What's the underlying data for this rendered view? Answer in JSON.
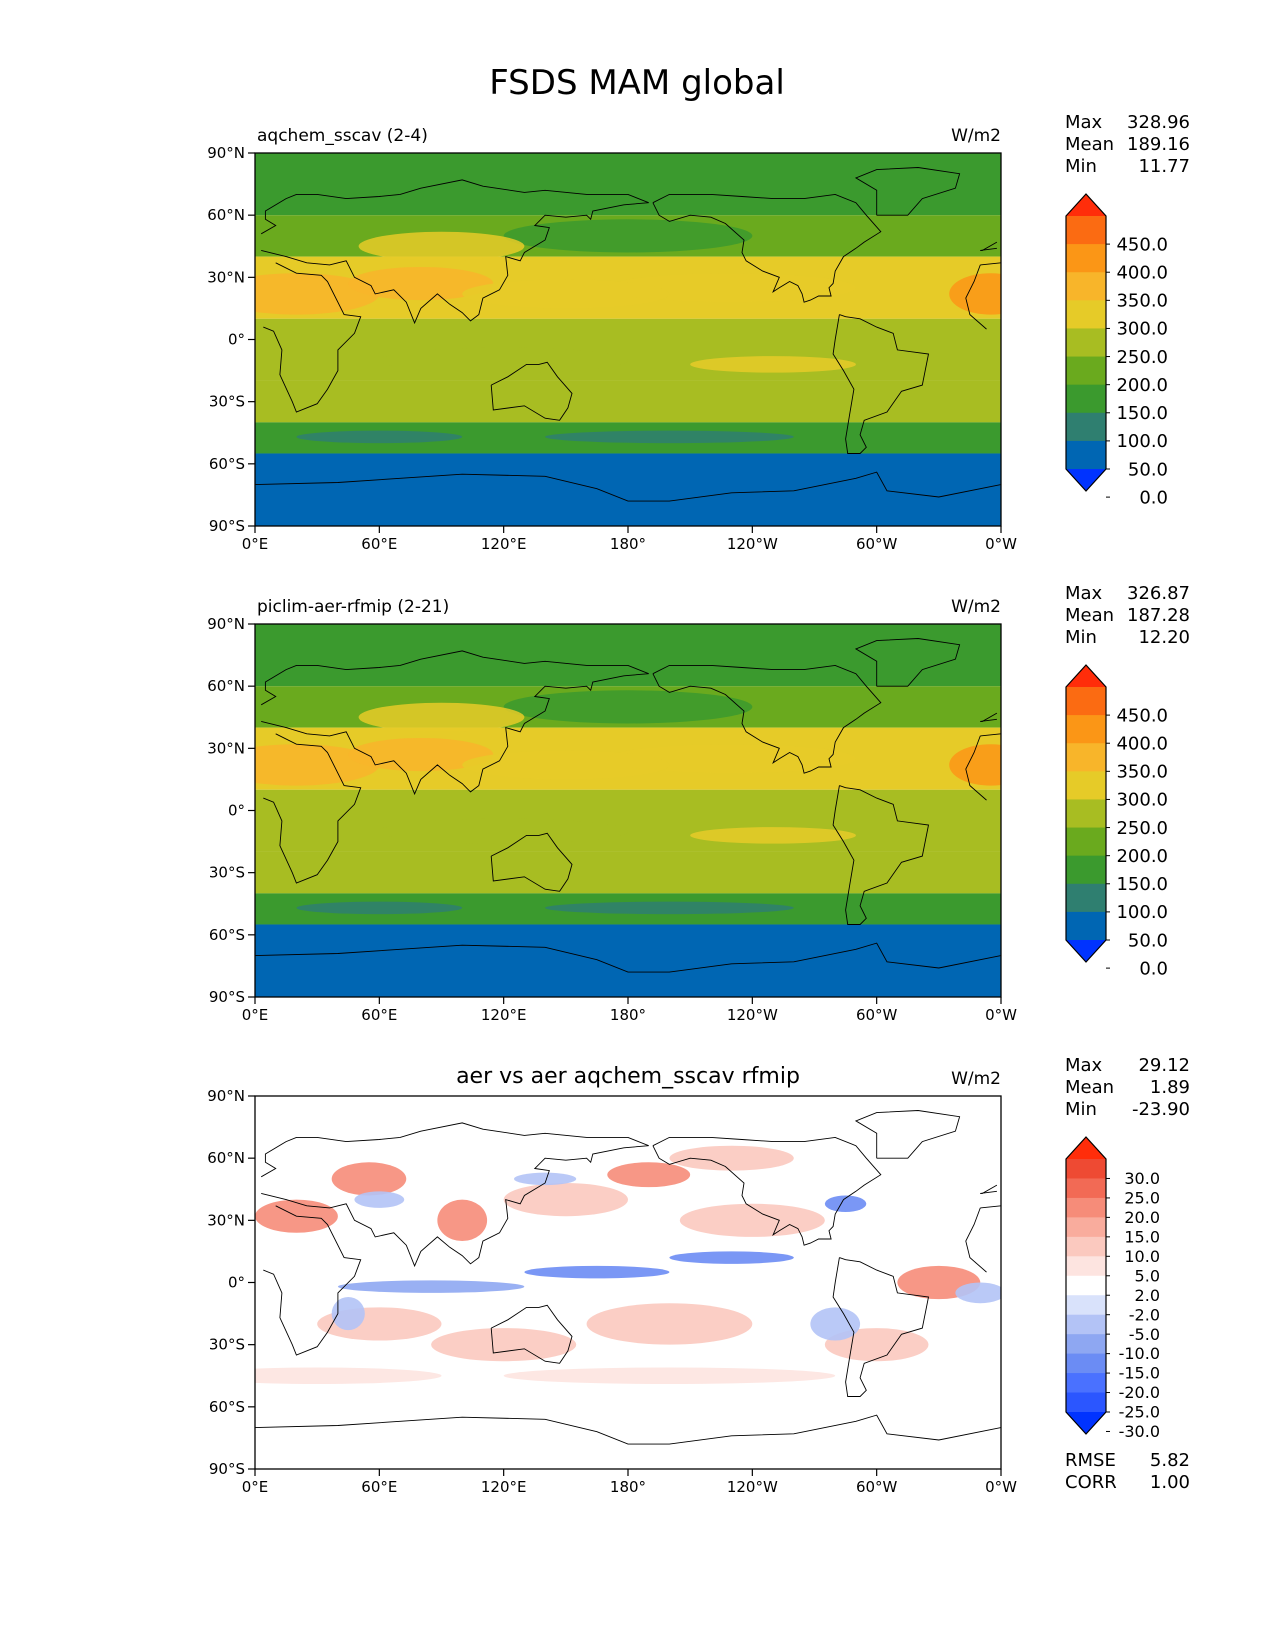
{
  "figure": {
    "title": "FSDS MAM global"
  },
  "colors": {
    "field": [
      "#0033ff",
      "#0066b3",
      "#2f7f70",
      "#3b9a2e",
      "#6aaa1e",
      "#a8bd22",
      "#e6cb28",
      "#f8b52a",
      "#fb9616",
      "#fb6b12",
      "#ff2d0a"
    ],
    "diff": [
      "#0033ff",
      "#2b56ff",
      "#4a71ff",
      "#6b8cf4",
      "#8ea7f2",
      "#b3c3f6",
      "#d9e2fb",
      "#ffffff",
      "#fde4e0",
      "#fbc9bf",
      "#f9ac9d",
      "#f68c79",
      "#f26a55",
      "#ee4a33",
      "#ff2d0a"
    ],
    "land_outline": "#000000",
    "frame": "#000000"
  },
  "axes": {
    "lat_ticks": [
      "90°N",
      "60°N",
      "30°N",
      "0°",
      "30°S",
      "60°S",
      "90°S"
    ],
    "lon_ticks": [
      "0°E",
      "60°E",
      "120°E",
      "180°",
      "120°W",
      "60°W",
      "0°W"
    ]
  },
  "chart_data": [
    {
      "type": "heatmap",
      "panel": "test",
      "title": "aqchem_sscav (2-4)",
      "units": "W/m2",
      "stats": [
        {
          "label": "Max",
          "value": "328.96"
        },
        {
          "label": "Mean",
          "value": "189.16"
        },
        {
          "label": "Min",
          "value": "11.77"
        }
      ],
      "colorbar_levels": [
        "450.0",
        "400.0",
        "350.0",
        "300.0",
        "250.0",
        "200.0",
        "150.0",
        "100.0",
        "50.0",
        "0.0"
      ],
      "zonal_bands": [
        {
          "lat_range": [
            60,
            90
          ],
          "level": 3
        },
        {
          "lat_range": [
            40,
            60
          ],
          "level": 4
        },
        {
          "lat_range": [
            10,
            40
          ],
          "level": 6
        },
        {
          "lat_range": [
            -20,
            10
          ],
          "level": 5
        },
        {
          "lat_range": [
            -40,
            -20
          ],
          "level": 5
        },
        {
          "lat_range": [
            -55,
            -40
          ],
          "level": 3
        },
        {
          "lat_range": [
            -90,
            -55
          ],
          "level": 1
        }
      ]
    },
    {
      "type": "heatmap",
      "panel": "reference",
      "title": "piclim-aer-rfmip (2-21)",
      "units": "W/m2",
      "stats": [
        {
          "label": "Max",
          "value": "326.87"
        },
        {
          "label": "Mean",
          "value": "187.28"
        },
        {
          "label": "Min",
          "value": "12.20"
        }
      ],
      "colorbar_levels": [
        "450.0",
        "400.0",
        "350.0",
        "300.0",
        "250.0",
        "200.0",
        "150.0",
        "100.0",
        "50.0",
        "0.0"
      ],
      "zonal_bands": [
        {
          "lat_range": [
            60,
            90
          ],
          "level": 3
        },
        {
          "lat_range": [
            40,
            60
          ],
          "level": 4
        },
        {
          "lat_range": [
            10,
            40
          ],
          "level": 6
        },
        {
          "lat_range": [
            -20,
            10
          ],
          "level": 5
        },
        {
          "lat_range": [
            -40,
            -20
          ],
          "level": 5
        },
        {
          "lat_range": [
            -55,
            -40
          ],
          "level": 3
        },
        {
          "lat_range": [
            -90,
            -55
          ],
          "level": 1
        }
      ]
    },
    {
      "type": "heatmap",
      "panel": "difference",
      "title": "aer vs aer aqchem_sscav rfmip",
      "units": "W/m2",
      "stats": [
        {
          "label": "Max",
          "value": "29.12"
        },
        {
          "label": "Mean",
          "value": "1.89"
        },
        {
          "label": "Min",
          "value": "-23.90"
        }
      ],
      "colorbar_levels": [
        "30.0",
        "25.0",
        "20.0",
        "15.0",
        "10.0",
        "5.0",
        "2.0",
        "-2.0",
        "-5.0",
        "-10.0",
        "-15.0",
        "-20.0",
        "-25.0",
        "-30.0"
      ],
      "summary": [
        {
          "label": "RMSE",
          "value": "5.82"
        },
        {
          "label": "CORR",
          "value": "1.00"
        }
      ]
    }
  ]
}
